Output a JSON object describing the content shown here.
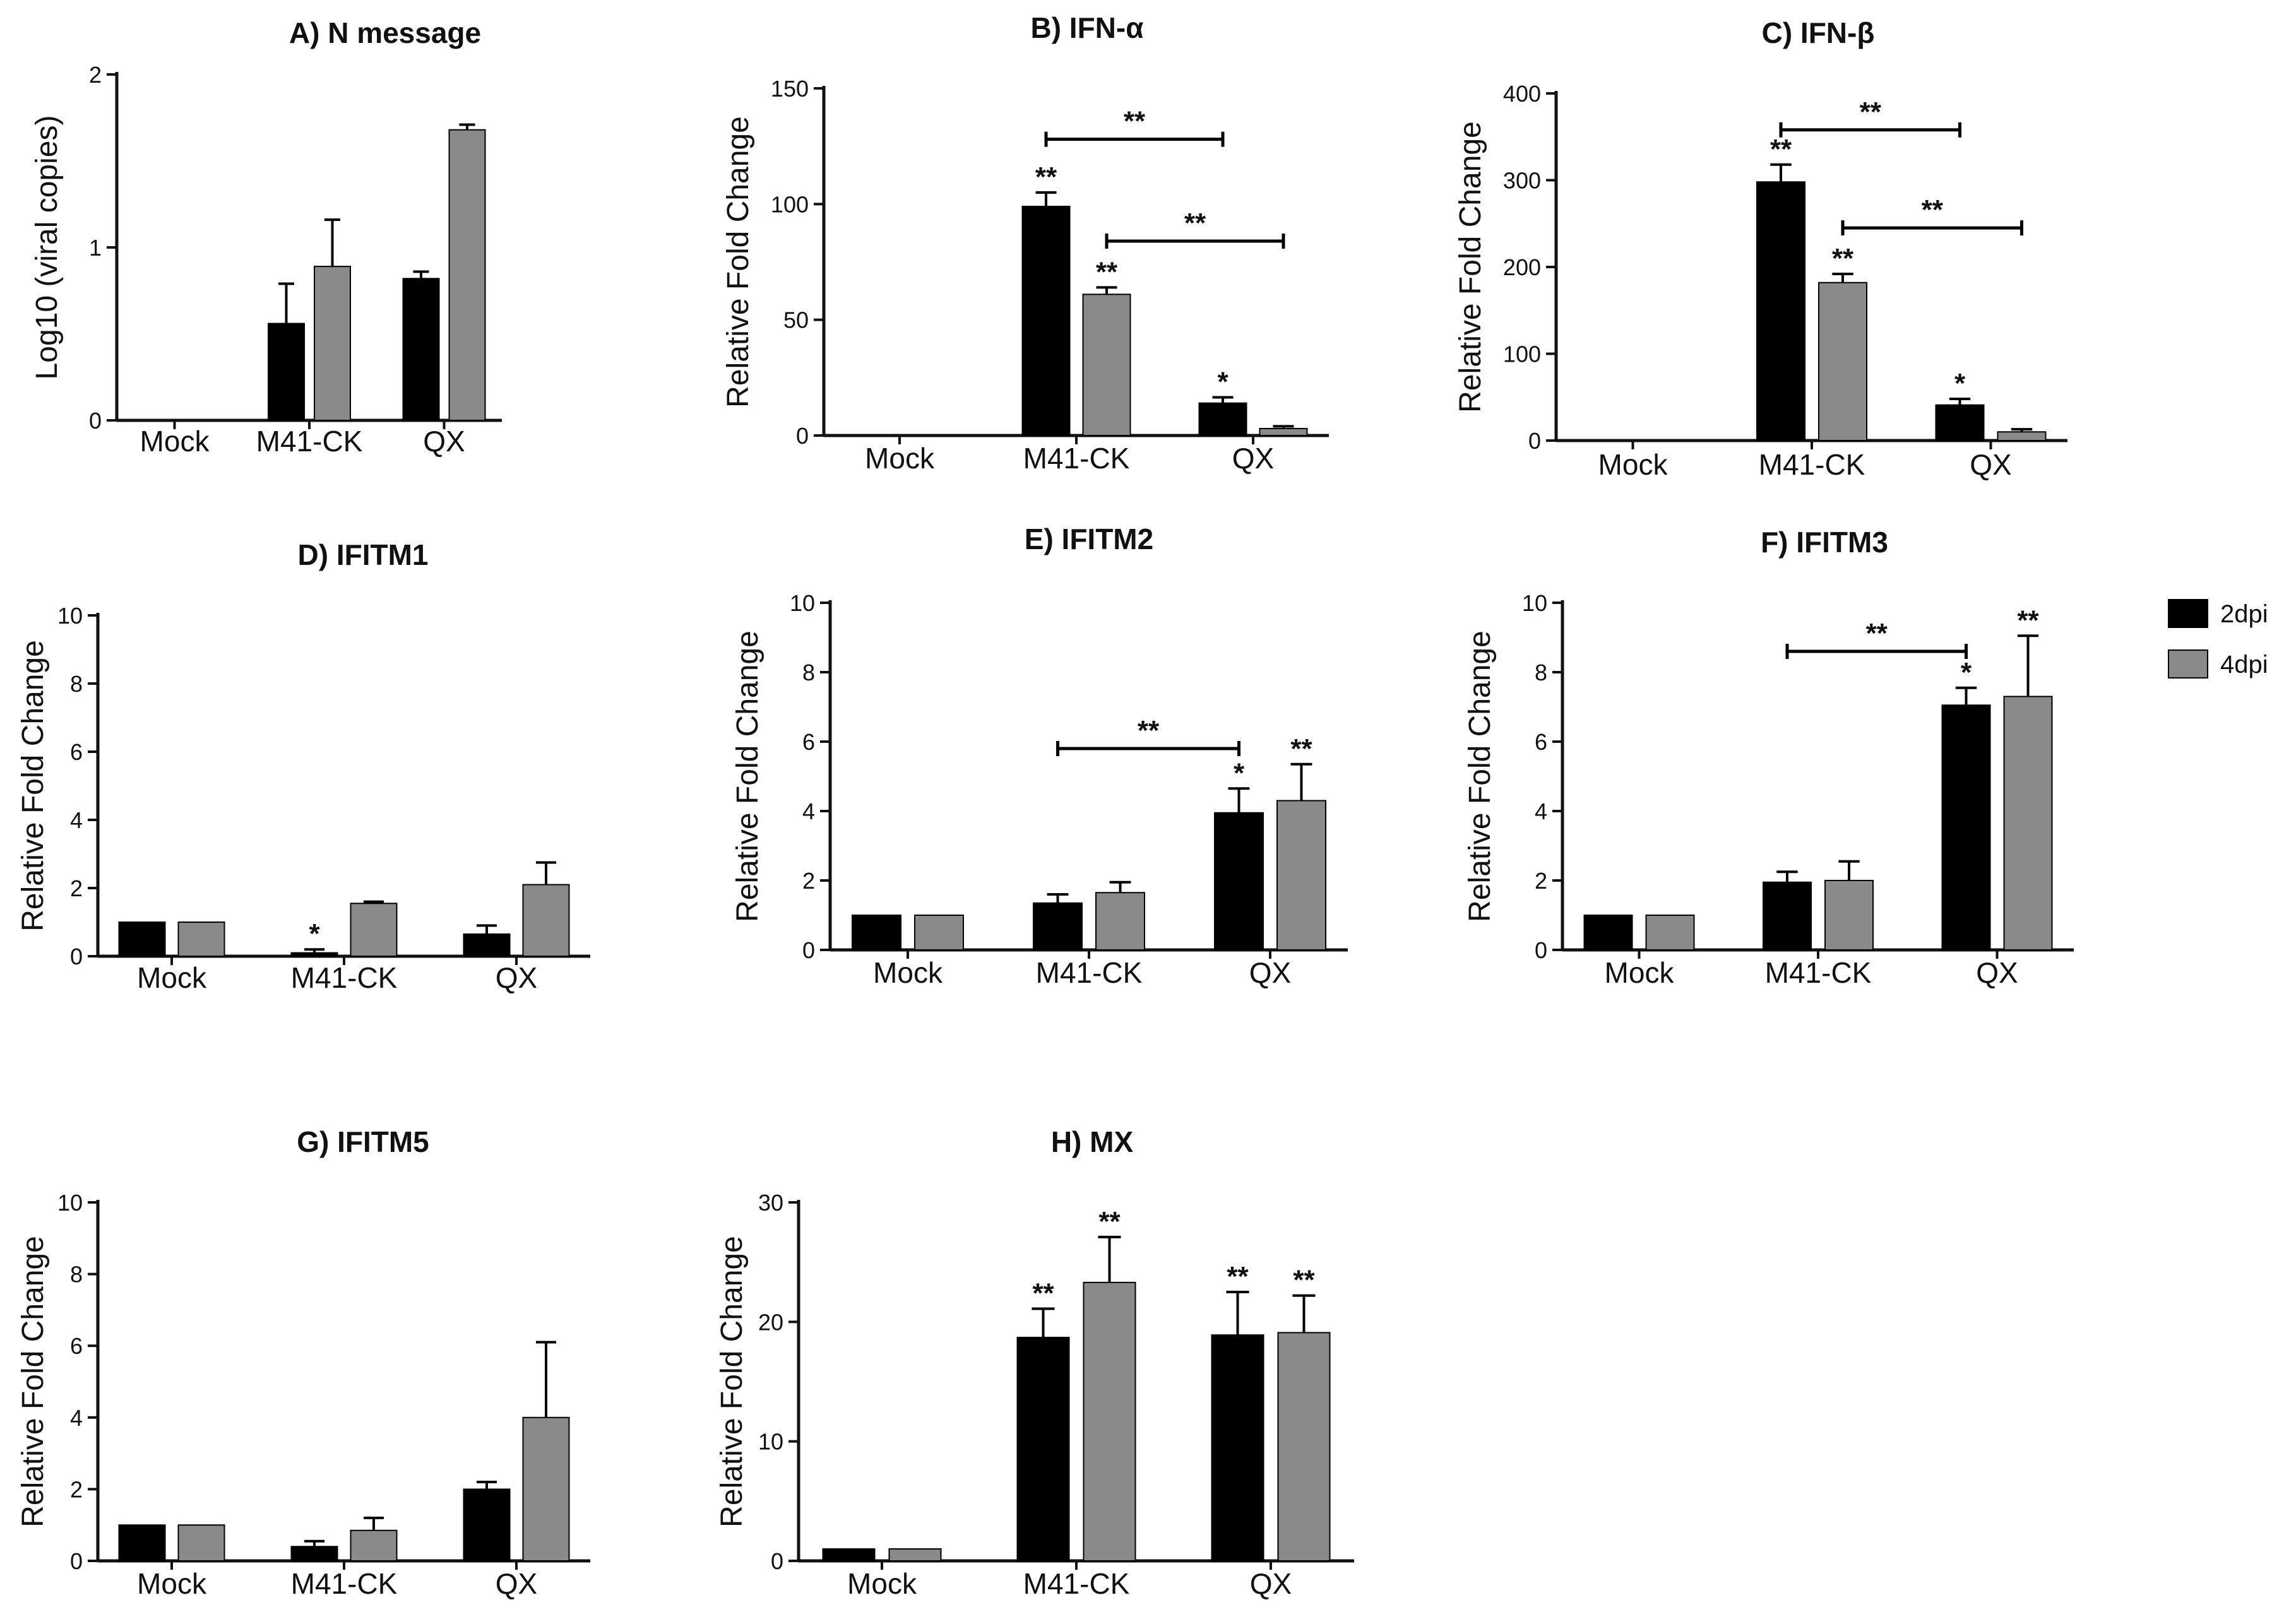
{
  "figure": {
    "legend": [
      {
        "label": "2dpi",
        "color": "#000000"
      },
      {
        "label": "4dpi",
        "color": "#8a8a8a"
      }
    ]
  },
  "chart_data": [
    {
      "type": "bar",
      "title": "A) N message",
      "ylabel": "Log10 (viral copies)",
      "categories": [
        "Mock",
        "M41-CK",
        "QX"
      ],
      "ylim": [
        0,
        2
      ],
      "yticks": [
        0,
        1,
        2
      ],
      "series": [
        {
          "name": "2dpi",
          "values": [
            0,
            0.56,
            0.82
          ],
          "errors": [
            0,
            0.23,
            0.04
          ]
        },
        {
          "name": "4dpi",
          "values": [
            0,
            0.89,
            1.68
          ],
          "errors": [
            0,
            0.27,
            0.03
          ]
        }
      ],
      "annotations": [],
      "brackets": []
    },
    {
      "type": "bar",
      "title": "B) IFN-α",
      "ylabel": "Relative Fold Change",
      "categories": [
        "Mock",
        "M41-CK",
        "QX"
      ],
      "ylim": [
        0,
        150
      ],
      "yticks": [
        0,
        50,
        100,
        150
      ],
      "series": [
        {
          "name": "2dpi",
          "values": [
            0,
            99,
            14
          ],
          "errors": [
            0,
            6,
            2.5
          ]
        },
        {
          "name": "4dpi",
          "values": [
            0,
            61,
            3
          ],
          "errors": [
            0,
            3,
            1
          ]
        }
      ],
      "annotations": [
        {
          "series": 0,
          "category": 1,
          "text": "**"
        },
        {
          "series": 1,
          "category": 1,
          "text": "**"
        },
        {
          "series": 0,
          "category": 2,
          "text": "*"
        }
      ],
      "brackets": [
        {
          "from": [
            0,
            1
          ],
          "to": [
            0,
            2
          ],
          "y": 128,
          "text": "**"
        },
        {
          "from": [
            1,
            1
          ],
          "to": [
            1,
            2
          ],
          "y": 84,
          "text": "**"
        }
      ]
    },
    {
      "type": "bar",
      "title": "C) IFN-β",
      "ylabel": "Relative Fold Change",
      "categories": [
        "Mock",
        "M41-CK",
        "QX"
      ],
      "ylim": [
        0,
        400
      ],
      "yticks": [
        0,
        100,
        200,
        300,
        400
      ],
      "series": [
        {
          "name": "2dpi",
          "values": [
            0,
            298,
            41
          ],
          "errors": [
            0,
            20,
            7
          ]
        },
        {
          "name": "4dpi",
          "values": [
            0,
            182,
            10
          ],
          "errors": [
            0,
            10,
            3
          ]
        }
      ],
      "annotations": [
        {
          "series": 0,
          "category": 1,
          "text": "**"
        },
        {
          "series": 1,
          "category": 1,
          "text": "**"
        },
        {
          "series": 0,
          "category": 2,
          "text": "*"
        }
      ],
      "brackets": [
        {
          "from": [
            0,
            1
          ],
          "to": [
            0,
            2
          ],
          "y": 358,
          "text": "**"
        },
        {
          "from": [
            1,
            1
          ],
          "to": [
            1,
            2
          ],
          "y": 245,
          "text": "**"
        }
      ]
    },
    {
      "type": "bar",
      "title": "D) IFITM1",
      "ylabel": "Relative Fold Change",
      "categories": [
        "Mock",
        "M41-CK",
        "QX"
      ],
      "ylim": [
        0,
        10
      ],
      "yticks": [
        0,
        2,
        4,
        6,
        8,
        10
      ],
      "series": [
        {
          "name": "2dpi",
          "values": [
            1,
            0.1,
            0.65
          ],
          "errors": [
            0,
            0.1,
            0.25
          ]
        },
        {
          "name": "4dpi",
          "values": [
            1,
            1.55,
            2.1
          ],
          "errors": [
            0,
            0.05,
            0.65
          ]
        }
      ],
      "annotations": [
        {
          "series": 0,
          "category": 1,
          "text": "*"
        }
      ],
      "brackets": []
    },
    {
      "type": "bar",
      "title": "E) IFITM2",
      "ylabel": "Relative Fold Change",
      "categories": [
        "Mock",
        "M41-CK",
        "QX"
      ],
      "ylim": [
        0,
        10
      ],
      "yticks": [
        0,
        2,
        4,
        6,
        8,
        10
      ],
      "series": [
        {
          "name": "2dpi",
          "values": [
            1,
            1.35,
            3.95
          ],
          "errors": [
            0,
            0.25,
            0.7
          ]
        },
        {
          "name": "4dpi",
          "values": [
            1,
            1.65,
            4.3
          ],
          "errors": [
            0,
            0.3,
            1.05
          ]
        }
      ],
      "annotations": [
        {
          "series": 0,
          "category": 2,
          "text": "*"
        },
        {
          "series": 1,
          "category": 2,
          "text": "**"
        }
      ],
      "brackets": [
        {
          "from": [
            0,
            1
          ],
          "to": [
            0,
            2
          ],
          "y": 5.8,
          "text": "**"
        }
      ]
    },
    {
      "type": "bar",
      "title": "F) IFITM3",
      "ylabel": "Relative Fold Change",
      "categories": [
        "Mock",
        "M41-CK",
        "QX"
      ],
      "ylim": [
        0,
        10
      ],
      "yticks": [
        0,
        2,
        4,
        6,
        8,
        10
      ],
      "series": [
        {
          "name": "2dpi",
          "values": [
            1,
            1.95,
            7.05
          ],
          "errors": [
            0,
            0.3,
            0.5
          ]
        },
        {
          "name": "4dpi",
          "values": [
            1,
            2.0,
            7.3
          ],
          "errors": [
            0,
            0.55,
            1.75
          ]
        }
      ],
      "annotations": [
        {
          "series": 0,
          "category": 2,
          "text": "*"
        },
        {
          "series": 1,
          "category": 2,
          "text": "**"
        }
      ],
      "brackets": [
        {
          "from": [
            0,
            1
          ],
          "to": [
            0,
            2
          ],
          "y": 8.6,
          "text": "**"
        }
      ]
    },
    {
      "type": "bar",
      "title": "G) IFITM5",
      "ylabel": "Relative Fold Change",
      "categories": [
        "Mock",
        "M41-CK",
        "QX"
      ],
      "ylim": [
        0,
        10
      ],
      "yticks": [
        0,
        2,
        4,
        6,
        8,
        10
      ],
      "series": [
        {
          "name": "2dpi",
          "values": [
            1,
            0.4,
            2.0
          ],
          "errors": [
            0,
            0.15,
            0.2
          ]
        },
        {
          "name": "4dpi",
          "values": [
            1,
            0.85,
            4.0
          ],
          "errors": [
            0,
            0.35,
            2.1
          ]
        }
      ],
      "annotations": [],
      "brackets": []
    },
    {
      "type": "bar",
      "title": "H) MX",
      "ylabel": "Relative Fold Change",
      "categories": [
        "Mock",
        "M41-CK",
        "QX"
      ],
      "ylim": [
        0,
        30
      ],
      "yticks": [
        0,
        10,
        20,
        30
      ],
      "series": [
        {
          "name": "2dpi",
          "values": [
            1,
            18.7,
            18.9
          ],
          "errors": [
            0,
            2.4,
            3.6
          ]
        },
        {
          "name": "4dpi",
          "values": [
            1,
            23.3,
            19.1
          ],
          "errors": [
            0,
            3.8,
            3.1
          ]
        }
      ],
      "annotations": [
        {
          "series": 0,
          "category": 1,
          "text": "**"
        },
        {
          "series": 1,
          "category": 1,
          "text": "**"
        },
        {
          "series": 0,
          "category": 2,
          "text": "**"
        },
        {
          "series": 1,
          "category": 2,
          "text": "**"
        }
      ],
      "brackets": []
    }
  ]
}
